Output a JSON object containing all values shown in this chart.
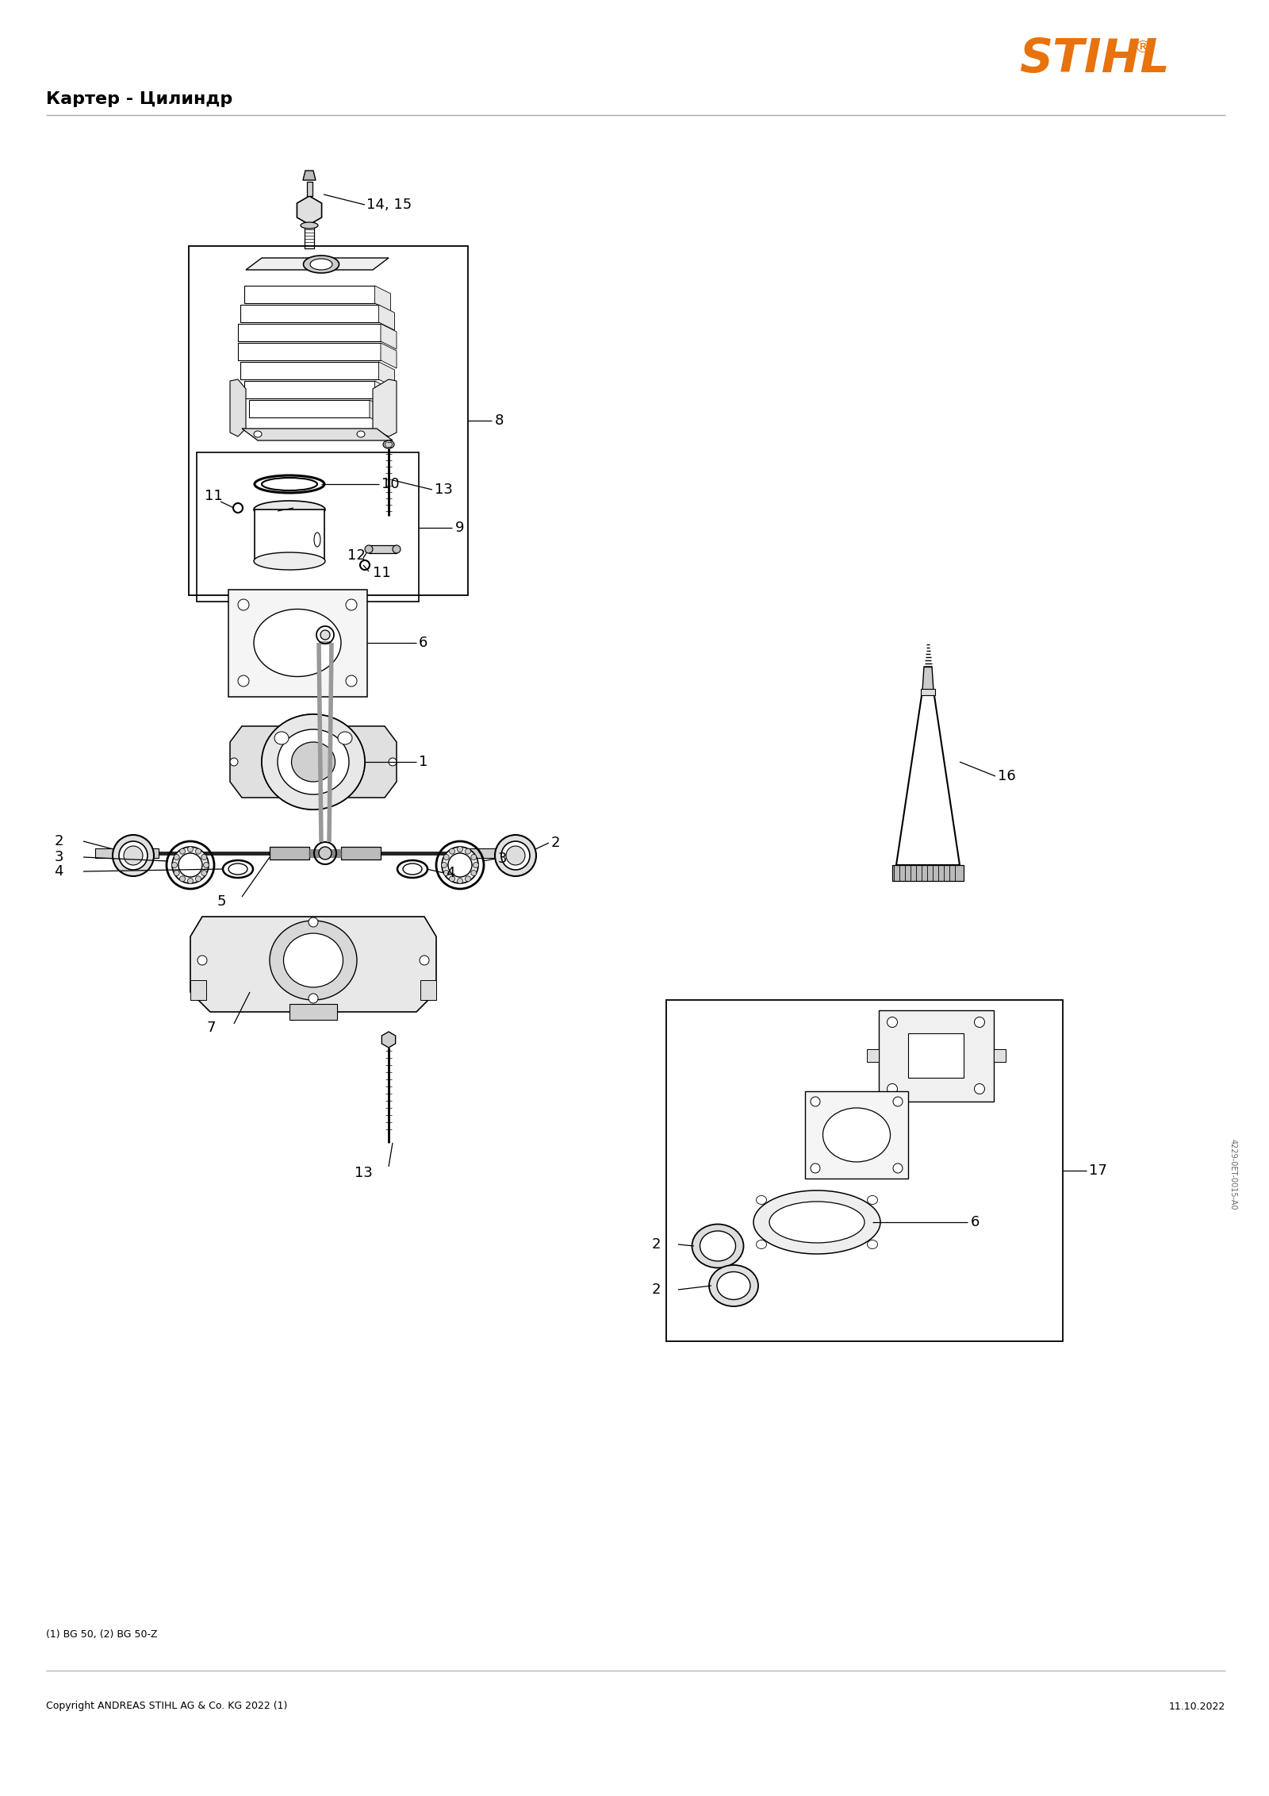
{
  "title": "Картер - Цилиндр",
  "stihl_color": "#E8720C",
  "background_color": "#FFFFFF",
  "title_fontsize": 16,
  "subtitle_left": "(1) BG 50, (2) BG 50-Z",
  "copyright_text": "Copyright ANDREAS STIHL AG & Co. KG 2022 (1)",
  "date_text": "11.10.2022",
  "watermark_text": "4229-0ET-0015-A0",
  "label_fontsize": 11,
  "fig_w": 16.0,
  "fig_h": 22.63,
  "dpi": 100
}
